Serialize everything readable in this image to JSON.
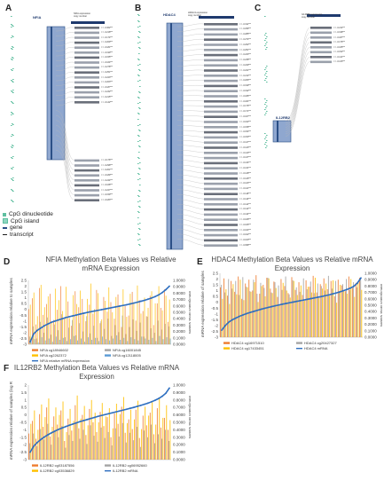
{
  "panel_letters": [
    "A",
    "B",
    "C",
    "D",
    "E",
    "F"
  ],
  "schematic_A": {
    "gene": "NFIA",
    "expression_label": "NFIA expression\ncopy number",
    "sig_labels": [
      "r = -0.362***",
      "r = -0.218***",
      "r = -0.174***",
      "r = -0.209***",
      "r = -0.181***",
      "r = -0.199***",
      "r = -0.155***",
      "r = -0.164***",
      "r = -0.278***",
      "r = -0.251***",
      "r = -0.223***",
      "r = -0.203***",
      "r = -0.187***",
      "r = -0.232***",
      "r = -0.215***",
      "r = -0.142***",
      "r = -0.176***",
      "r = -0.298***",
      "r = -0.201***",
      "r = -0.189***",
      "r = -0.244***",
      "r = -0.168***",
      "r = -0.227***",
      "r = -0.159***",
      "r = -0.183***"
    ]
  },
  "schematic_B": {
    "gene": "HDAC4",
    "expression_label": "HDAC4 expression\ncopy number",
    "sig_labels": [
      "r = -0.311***",
      "r = -0.296***",
      "r = -0.285***",
      "r = -0.274***",
      "r = -0.262***",
      "r = -0.251***",
      "r = -0.243***",
      "r = -0.238***",
      "r = -0.229***",
      "r = -0.221***",
      "r = -0.214***",
      "r = -0.206***",
      "r = -0.199***",
      "r = -0.192***",
      "r = -0.186***",
      "r = -0.181***",
      "r = -0.176***",
      "r = -0.171***",
      "r = -0.167***",
      "r = -0.162***",
      "r = -0.158***",
      "r = -0.154***",
      "r = -0.150***",
      "r = -0.147***",
      "r = -0.143***",
      "r = -0.140***",
      "r = -0.137***",
      "r = -0.134***",
      "r = -0.131***",
      "r = -0.128***",
      "r = -0.126***",
      "r = -0.123***",
      "r = -0.121***",
      "r = -0.118***",
      "r = -0.116***",
      "r = -0.114***",
      "r = -0.112***",
      "r = -0.110***",
      "r = -0.108***",
      "r = -0.106***",
      "r = -0.104***",
      "r = -0.102***",
      "r = -0.100***",
      "r = -0.098***"
    ]
  },
  "schematic_C": {
    "gene": "IL12RB2",
    "expression_label": "IL12RB2 expression\ncopy number",
    "sig_labels": [
      "r = -0.214***",
      "r = -0.198***",
      "r = -0.187***",
      "r = -0.176***",
      "r = -0.165***",
      "r = -0.152***",
      "r = -0.141***",
      "r = -0.133***"
    ]
  },
  "legend": {
    "cpg_dinucleotide": "CpG dinucleotide",
    "cpg_island": "CpG island",
    "gene": "gene",
    "transcript": "transcript"
  },
  "colors": {
    "mrna": "#2e6fc0",
    "orange": "#ee7d31",
    "gray": "#a5a5a5",
    "yellow": "#ffc000",
    "lightblue": "#5b9bd5",
    "gene_bar": "#2b4f86",
    "cpg": "#5fbfa0"
  },
  "chart_data": [
    {
      "type": "line",
      "title": "NFIA Methylation Beta Values vs Relative mRNA Expression",
      "ylabel": "mRNA expression relative to samples (log RNA seq v2 RSEM)",
      "y2label": "Methylation Beta Values",
      "ylim": [
        -3,
        2.5
      ],
      "y2lim": [
        0,
        1
      ],
      "yticks": [
        "2.5",
        "2",
        "1.5",
        "1",
        "0.5",
        "0",
        "-0.5",
        "-1",
        "-1.5",
        "-2",
        "-2.5",
        "-3"
      ],
      "y2ticks": [
        "1.0000",
        "0.9000",
        "0.8000",
        "0.7000",
        "0.6000",
        "0.5000",
        "0.4000",
        "0.3000",
        "0.2000",
        "0.1000",
        "0.0000"
      ],
      "series": [
        {
          "name": "NFIA cg18946602",
          "color": "#ee7d31",
          "kind": "bar",
          "values": [
            0.55,
            0.72,
            0.31,
            0.88,
            0.46,
            0.63,
            0.79,
            0.38,
            0.54,
            0.91,
            0.42,
            0.67,
            0.29,
            0.83,
            0.58,
            0.71,
            0.36,
            0.62,
            0.48,
            0.85,
            0.33,
            0.74,
            0.51,
            0.66,
            0.4,
            0.78,
            0.27,
            0.6,
            0.45,
            0.82,
            0.37,
            0.69,
            0.52,
            0.44,
            0.76,
            0.3,
            0.64,
            0.57,
            0.86,
            0.35
          ]
        },
        {
          "name": "NFIA cg16001845",
          "color": "#a5a5a5",
          "kind": "bar",
          "values": [
            0.12,
            0.28,
            0.09,
            0.35,
            0.18,
            0.42,
            0.15,
            0.31,
            0.22,
            0.47,
            0.11,
            0.26,
            0.38,
            0.14,
            0.33,
            0.2,
            0.44,
            0.17,
            0.29,
            0.1,
            0.36,
            0.24,
            0.4,
            0.13,
            0.3,
            0.19,
            0.45,
            0.16,
            0.27,
            0.39,
            0.21,
            0.34,
            0.12,
            0.43,
            0.25,
            0.18,
            0.37,
            0.23,
            0.32,
            0.28
          ]
        },
        {
          "name": "NFIA cg2262372",
          "color": "#ffc000",
          "kind": "bar",
          "values": [
            0.62,
            0.81,
            0.44,
            0.93,
            0.58,
            0.75,
            0.36,
            0.87,
            0.69,
            0.52,
            0.9,
            0.41,
            0.77,
            0.63,
            0.84,
            0.47,
            0.71,
            0.95,
            0.55,
            0.8,
            0.39,
            0.68,
            0.89,
            0.5,
            0.74,
            0.6,
            0.86,
            0.43,
            0.79,
            0.66,
            0.92,
            0.48,
            0.73,
            0.57,
            0.83,
            0.64,
            0.91,
            0.53,
            0.76,
            0.7
          ]
        },
        {
          "name": "NFIA cg12118005",
          "color": "#5b9bd5",
          "kind": "bar",
          "values": [
            0.05,
            0.08,
            0.03,
            0.11,
            0.06,
            0.09,
            0.04,
            0.12,
            0.07,
            0.1,
            0.05,
            0.08,
            0.13,
            0.06,
            0.09,
            0.04,
            0.11,
            0.07,
            0.1,
            0.05,
            0.12,
            0.08,
            0.06,
            0.09,
            0.14,
            0.07,
            0.1,
            0.05,
            0.11,
            0.08,
            0.06,
            0.12,
            0.09,
            0.07,
            0.1,
            0.05,
            0.13,
            0.08,
            0.11,
            0.09
          ]
        },
        {
          "name": "NFIA relative mRNA expression",
          "color": "#2e6fc0",
          "kind": "line",
          "values": [
            -2.8,
            -2.1,
            -1.8,
            -1.6,
            -1.4,
            -1.25,
            -1.1,
            -1.0,
            -0.9,
            -0.8,
            -0.7,
            -0.62,
            -0.55,
            -0.48,
            -0.4,
            -0.33,
            -0.26,
            -0.2,
            -0.14,
            -0.08,
            -0.02,
            0.04,
            0.1,
            0.16,
            0.22,
            0.28,
            0.34,
            0.4,
            0.47,
            0.54,
            0.62,
            0.7,
            0.78,
            0.88,
            0.98,
            1.1,
            1.25,
            1.45,
            1.7,
            2.0
          ]
        }
      ]
    },
    {
      "type": "line",
      "title": "HDAC4 Methylation Beta Values vs Relative mRNA Expression",
      "ylabel": "mRNA expression relative of samples (log RNA seq v2 RSEM)",
      "y2label": "Methylation Beta Values",
      "ylim": [
        -3,
        2.5
      ],
      "y2lim": [
        0,
        1
      ],
      "yticks": [
        "2.5",
        "2",
        "1.5",
        "1",
        "0.5",
        "0",
        "-0.5",
        "-1",
        "-1.5",
        "-2",
        "-2.5",
        "-3"
      ],
      "y2ticks": [
        "1.0000",
        "0.9000",
        "0.8000",
        "0.7000",
        "0.6000",
        "0.5000",
        "0.4000",
        "0.3000",
        "0.2000",
        "0.1000",
        "0.0000"
      ],
      "series": [
        {
          "name": "HDAC4 cg16971510",
          "color": "#ee7d31",
          "kind": "bar",
          "values": [
            0.78,
            0.92,
            0.65,
            0.88,
            0.71,
            0.95,
            0.6,
            0.84,
            0.9,
            0.73,
            0.97,
            0.68,
            0.82,
            0.93,
            0.76,
            0.87,
            0.63,
            0.91,
            0.8,
            0.69,
            0.94,
            0.74,
            0.86,
            0.66,
            0.89,
            0.79,
            0.96,
            0.7,
            0.83,
            0.92,
            0.75,
            0.88,
            0.64,
            0.9,
            0.81,
            0.72,
            0.95,
            0.77,
            0.85,
            0.93
          ]
        },
        {
          "name": "HDAC4 cg20427327",
          "color": "#a5a5a5",
          "kind": "bar",
          "values": [
            0.82,
            0.7,
            0.91,
            0.76,
            0.88,
            0.66,
            0.94,
            0.79,
            0.72,
            0.9,
            0.68,
            0.85,
            0.77,
            0.93,
            0.7,
            0.86,
            0.81,
            0.74,
            0.95,
            0.67,
            0.89,
            0.78,
            0.71,
            0.92,
            0.75,
            0.87,
            0.69,
            0.84,
            0.8,
            0.73,
            0.96,
            0.76,
            0.88,
            0.7,
            0.83,
            0.91,
            0.74,
            0.86,
            0.78,
            0.9
          ]
        },
        {
          "name": "HDAC4 cg17433451",
          "color": "#ffc000",
          "kind": "bar",
          "values": [
            0.6,
            0.75,
            0.52,
            0.83,
            0.67,
            0.9,
            0.58,
            0.78,
            0.71,
            0.86,
            0.55,
            0.8,
            0.64,
            0.92,
            0.69,
            0.77,
            0.5,
            0.85,
            0.73,
            0.62,
            0.88,
            0.66,
            0.81,
            0.57,
            0.79,
            0.7,
            0.93,
            0.61,
            0.76,
            0.84,
            0.65,
            0.89,
            0.54,
            0.82,
            0.72,
            0.68,
            0.91,
            0.63,
            0.87,
            0.74
          ]
        },
        {
          "name": "HDAC4 mRNA",
          "color": "#2e6fc0",
          "kind": "line",
          "values": [
            -2.4,
            -2.0,
            -1.7,
            -1.5,
            -1.35,
            -1.2,
            -1.08,
            -0.97,
            -0.87,
            -0.78,
            -0.69,
            -0.6,
            -0.52,
            -0.44,
            -0.37,
            -0.3,
            -0.23,
            -0.16,
            -0.1,
            -0.04,
            0.02,
            0.08,
            0.14,
            0.2,
            0.26,
            0.32,
            0.38,
            0.44,
            0.5,
            0.57,
            0.64,
            0.72,
            0.8,
            0.89,
            0.99,
            1.1,
            1.22,
            1.38,
            1.65,
            2.1
          ]
        }
      ]
    },
    {
      "type": "line",
      "title": "IL12RB2 Methylation Beta Values vs Relative mRNA Expression",
      "ylabel": "mRNA expression relative of samples (log RNA seq v2 RSEM)",
      "y2label": "Methylation Beta Values",
      "ylim": [
        -3,
        2
      ],
      "y2lim": [
        0,
        1
      ],
      "yticks": [
        "2",
        "1.5",
        "1",
        "0.5",
        "0",
        "-0.5",
        "-1",
        "-1.5",
        "-2",
        "-2.5",
        "-3"
      ],
      "y2ticks": [
        "1.0000",
        "0.9000",
        "0.8000",
        "0.7000",
        "0.6000",
        "0.5000",
        "0.4000",
        "0.3000",
        "0.2000",
        "0.1000",
        "0.0000"
      ],
      "series": [
        {
          "name": "IL12RB2 cg03187556",
          "color": "#ee7d31",
          "kind": "bar",
          "values": [
            0.35,
            0.52,
            0.28,
            0.61,
            0.44,
            0.7,
            0.31,
            0.58,
            0.47,
            0.66,
            0.25,
            0.55,
            0.39,
            0.73,
            0.42,
            0.6,
            0.33,
            0.68,
            0.5,
            0.37,
            0.64,
            0.45,
            0.57,
            0.3,
            0.62,
            0.48,
            0.71,
            0.36,
            0.54,
            0.41,
            0.67,
            0.29,
            0.59,
            0.46,
            0.63,
            0.34,
            0.69,
            0.43,
            0.56,
            0.4
          ]
        },
        {
          "name": "IL12RB2 cg06952660",
          "color": "#a5a5a5",
          "kind": "bar",
          "values": [
            0.22,
            0.35,
            0.18,
            0.41,
            0.27,
            0.48,
            0.2,
            0.38,
            0.3,
            0.45,
            0.16,
            0.33,
            0.25,
            0.5,
            0.28,
            0.4,
            0.21,
            0.46,
            0.32,
            0.24,
            0.43,
            0.29,
            0.37,
            0.19,
            0.42,
            0.31,
            0.49,
            0.23,
            0.36,
            0.26,
            0.44,
            0.17,
            0.39,
            0.3,
            0.47,
            0.22,
            0.34,
            0.28,
            0.4,
            0.25
          ]
        },
        {
          "name": "IL12RB2 cg03536829",
          "color": "#ffc000",
          "kind": "bar",
          "values": [
            0.48,
            0.66,
            0.4,
            0.74,
            0.57,
            0.82,
            0.44,
            0.7,
            0.6,
            0.78,
            0.37,
            0.68,
            0.52,
            0.86,
            0.55,
            0.72,
            0.46,
            0.8,
            0.63,
            0.5,
            0.76,
            0.58,
            0.69,
            0.42,
            0.75,
            0.61,
            0.84,
            0.49,
            0.67,
            0.54,
            0.79,
            0.41,
            0.71,
            0.59,
            0.77,
            0.47,
            0.83,
            0.56,
            0.73,
            0.53
          ]
        },
        {
          "name": "IL12RB2 mRNA",
          "color": "#2e6fc0",
          "kind": "line",
          "values": [
            -2.5,
            -2.1,
            -1.85,
            -1.65,
            -1.48,
            -1.33,
            -1.2,
            -1.08,
            -0.97,
            -0.87,
            -0.78,
            -0.69,
            -0.61,
            -0.53,
            -0.45,
            -0.38,
            -0.31,
            -0.24,
            -0.17,
            -0.1,
            -0.04,
            0.02,
            0.08,
            0.14,
            0.2,
            0.26,
            0.32,
            0.38,
            0.44,
            0.5,
            0.57,
            0.64,
            0.71,
            0.79,
            0.88,
            0.98,
            1.1,
            1.25,
            1.45,
            1.8
          ]
        }
      ]
    }
  ]
}
